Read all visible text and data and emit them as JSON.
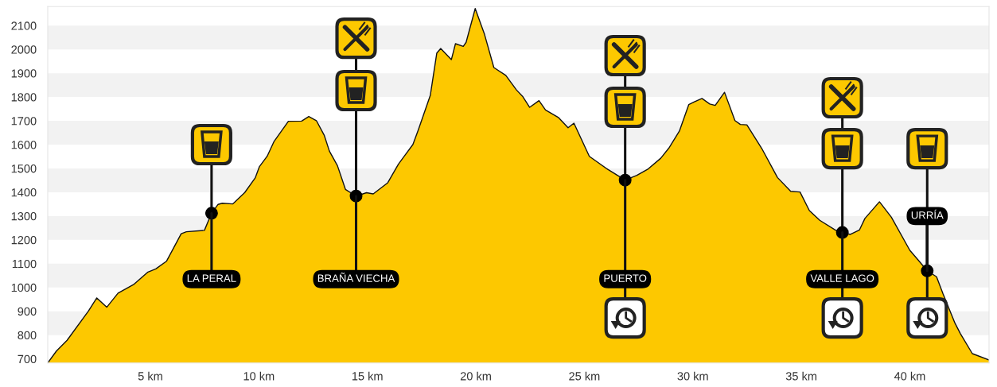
{
  "chart_data": {
    "type": "area",
    "xlim": [
      0.27,
      43.65
    ],
    "ylim": [
      683,
      2180
    ],
    "xticks": [
      {
        "value": 5,
        "label": "5 km"
      },
      {
        "value": 10,
        "label": "10 km"
      },
      {
        "value": 15,
        "label": "15 km"
      },
      {
        "value": 20,
        "label": "20 km"
      },
      {
        "value": 25,
        "label": "25 km"
      },
      {
        "value": 30,
        "label": "30 km"
      },
      {
        "value": 35,
        "label": "35 km"
      },
      {
        "value": 40,
        "label": "40 km"
      }
    ],
    "yticks": [
      700,
      800,
      900,
      1000,
      1100,
      1200,
      1300,
      1400,
      1500,
      1600,
      1700,
      1800,
      1900,
      2000,
      2100
    ],
    "grid": false,
    "bands": [
      {
        "axis": "y",
        "from": 800,
        "to": 900,
        "color": "#f2f2f2"
      },
      {
        "axis": "y",
        "from": 1000,
        "to": 1100,
        "color": "#f2f2f2"
      },
      {
        "axis": "y",
        "from": 1200,
        "to": 1300,
        "color": "#f2f2f2"
      },
      {
        "axis": "y",
        "from": 1400,
        "to": 1500,
        "color": "#f2f2f2"
      },
      {
        "axis": "y",
        "from": 1600,
        "to": 1700,
        "color": "#f2f2f2"
      },
      {
        "axis": "y",
        "from": 1800,
        "to": 1900,
        "color": "#f2f2f2"
      },
      {
        "axis": "y",
        "from": 2000,
        "to": 2100,
        "color": "#f2f2f2"
      }
    ],
    "series": [
      {
        "color": "#fdc800",
        "x": [
          0.27,
          0.67,
          1.16,
          2.14,
          2.53,
          2.99,
          3.51,
          4.22,
          4.89,
          5.25,
          5.74,
          6.42,
          6.66,
          7.49,
          7.82,
          8.12,
          8.31,
          8.8,
          9.35,
          9.83,
          10.02,
          10.38,
          10.69,
          11.36,
          11.97,
          12.3,
          12.65,
          13.01,
          13.25,
          13.62,
          13.99,
          14.48,
          14.96,
          15.27,
          15.94,
          16.43,
          17.1,
          17.35,
          17.9,
          18.2,
          18.38,
          18.87,
          19.06,
          19.42,
          19.55,
          19.97,
          20.4,
          20.83,
          21.38,
          21.87,
          22.17,
          22.48,
          22.91,
          23.21,
          23.82,
          24.25,
          24.52,
          25.23,
          26.08,
          26.88,
          27.42,
          27.91,
          28.52,
          28.89,
          29.38,
          29.81,
          30.05,
          30.42,
          30.78,
          31.03,
          31.46,
          31.94,
          32.19,
          32.49,
          33.17,
          33.9,
          34.51,
          34.94,
          35.37,
          35.85,
          36.59,
          36.89,
          37.26,
          37.68,
          37.93,
          38.6,
          39.15,
          40.0,
          40.37,
          40.8,
          41.23,
          41.53,
          42.08,
          42.33,
          42.88,
          43.65
        ],
        "values": [
          683,
          733,
          778,
          900,
          956,
          917,
          976,
          1012,
          1065,
          1078,
          1110,
          1226,
          1234,
          1240,
          1312,
          1349,
          1354,
          1351,
          1399,
          1460,
          1507,
          1551,
          1612,
          1698,
          1699,
          1718,
          1701,
          1640,
          1573,
          1512,
          1412,
          1384,
          1398,
          1393,
          1440,
          1518,
          1601,
          1663,
          1807,
          1985,
          2004,
          1957,
          2024,
          2013,
          2030,
          2172,
          2063,
          1924,
          1891,
          1830,
          1801,
          1757,
          1785,
          1746,
          1713,
          1671,
          1690,
          1551,
          1496,
          1451,
          1471,
          1496,
          1543,
          1585,
          1657,
          1768,
          1779,
          1794,
          1771,
          1765,
          1820,
          1701,
          1685,
          1683,
          1585,
          1462,
          1404,
          1401,
          1323,
          1282,
          1240,
          1231,
          1223,
          1242,
          1290,
          1360,
          1295,
          1156,
          1117,
          1070,
          1045,
          973,
          850,
          806,
          722,
          695
        ]
      },
      {
        "type": "scatter",
        "color": "#000000",
        "marker": "circle",
        "x": [
          7.82,
          14.48,
          26.88,
          36.89,
          40.8
        ],
        "values": [
          1312,
          1384,
          1451,
          1231,
          1070
        ]
      }
    ],
    "annotations": [
      {
        "text": "LA PERAL",
        "x": 7.82,
        "y": 1312
      },
      {
        "text": "BRAÑA VIECHA",
        "x": 14.48,
        "y": 1384
      },
      {
        "text": "PUERTO",
        "x": 26.88,
        "y": 1451
      },
      {
        "text": "VALLE LAGO",
        "x": 36.89,
        "y": 1231
      },
      {
        "text": "URRÍA",
        "x": 40.8,
        "y": 1070
      }
    ]
  }
}
